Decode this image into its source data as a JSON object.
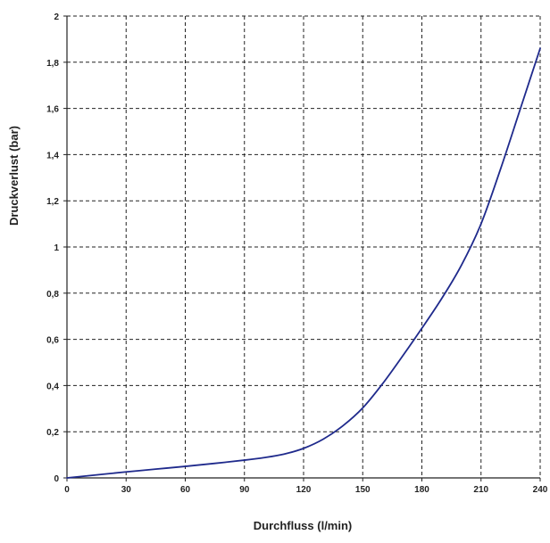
{
  "chart_data": {
    "type": "line",
    "title": "",
    "xlabel": "Durchfluss (l/min)",
    "ylabel": "Druckverlust (bar)",
    "xlim": [
      0,
      240
    ],
    "ylim": [
      0,
      2
    ],
    "x_ticks": [
      "0",
      "30",
      "60",
      "90",
      "120",
      "150",
      "180",
      "210",
      "240"
    ],
    "y_ticks": [
      "0",
      "0,2",
      "0,4",
      "0,6",
      "0,8",
      "1",
      "1,2",
      "1,4",
      "1,6",
      "1,8",
      "2"
    ],
    "grid": true,
    "grid_style": "dashed",
    "legend": "none",
    "series": [
      {
        "color": "#1f2a8c",
        "x": [
          0,
          15,
          30,
          45,
          60,
          75,
          90,
          100,
          110,
          120,
          130,
          140,
          150,
          160,
          170,
          180,
          190,
          200,
          210,
          220,
          230,
          240
        ],
        "y": [
          0,
          0.013,
          0.026,
          0.038,
          0.05,
          0.063,
          0.077,
          0.088,
          0.103,
          0.128,
          0.168,
          0.226,
          0.303,
          0.407,
          0.525,
          0.648,
          0.776,
          0.92,
          1.1,
          1.34,
          1.6,
          1.86
        ]
      }
    ]
  }
}
